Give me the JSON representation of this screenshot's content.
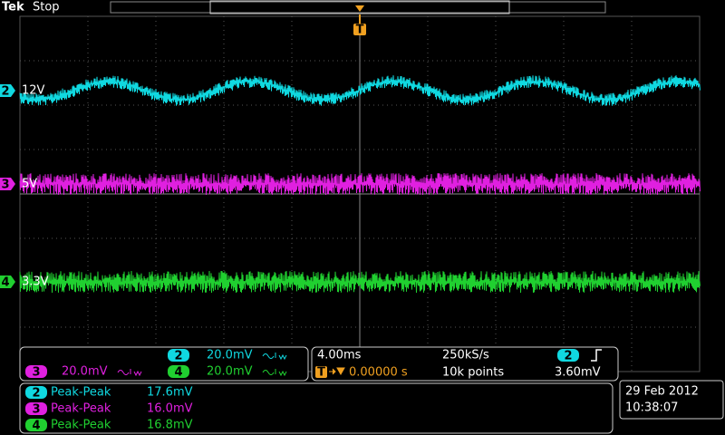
{
  "header": {
    "brand": "Tek",
    "status": "Stop",
    "trigger_marker": "T"
  },
  "channels": [
    {
      "number": "2",
      "label": "12V",
      "color": "#10d8e0"
    },
    {
      "number": "3",
      "label": "5V",
      "color": "#e020e0"
    },
    {
      "number": "4",
      "label": "3.3V",
      "color": "#20d030"
    }
  ],
  "vertical": [
    {
      "channel": "2",
      "scale": "20.0mV"
    },
    {
      "channel": "3",
      "scale": "20.0mV"
    },
    {
      "channel": "4",
      "scale": "20.0mV"
    }
  ],
  "horizontal": {
    "scale": "4.00ms",
    "sample_rate": "250kS/s",
    "trigger_marker": "T",
    "trigger_position": "0.00000 s",
    "record_length": "10k points",
    "trigger_channel": "2",
    "trigger_level": "3.60mV"
  },
  "measurements": [
    {
      "channel": "2",
      "name": "Peak-Peak",
      "value": "17.6mV"
    },
    {
      "channel": "3",
      "name": "Peak-Peak",
      "value": "16.0mV"
    },
    {
      "channel": "4",
      "name": "Peak-Peak",
      "value": "16.8mV"
    }
  ],
  "datetime": {
    "date": "29 Feb 2012",
    "time": "10:38:07"
  }
}
